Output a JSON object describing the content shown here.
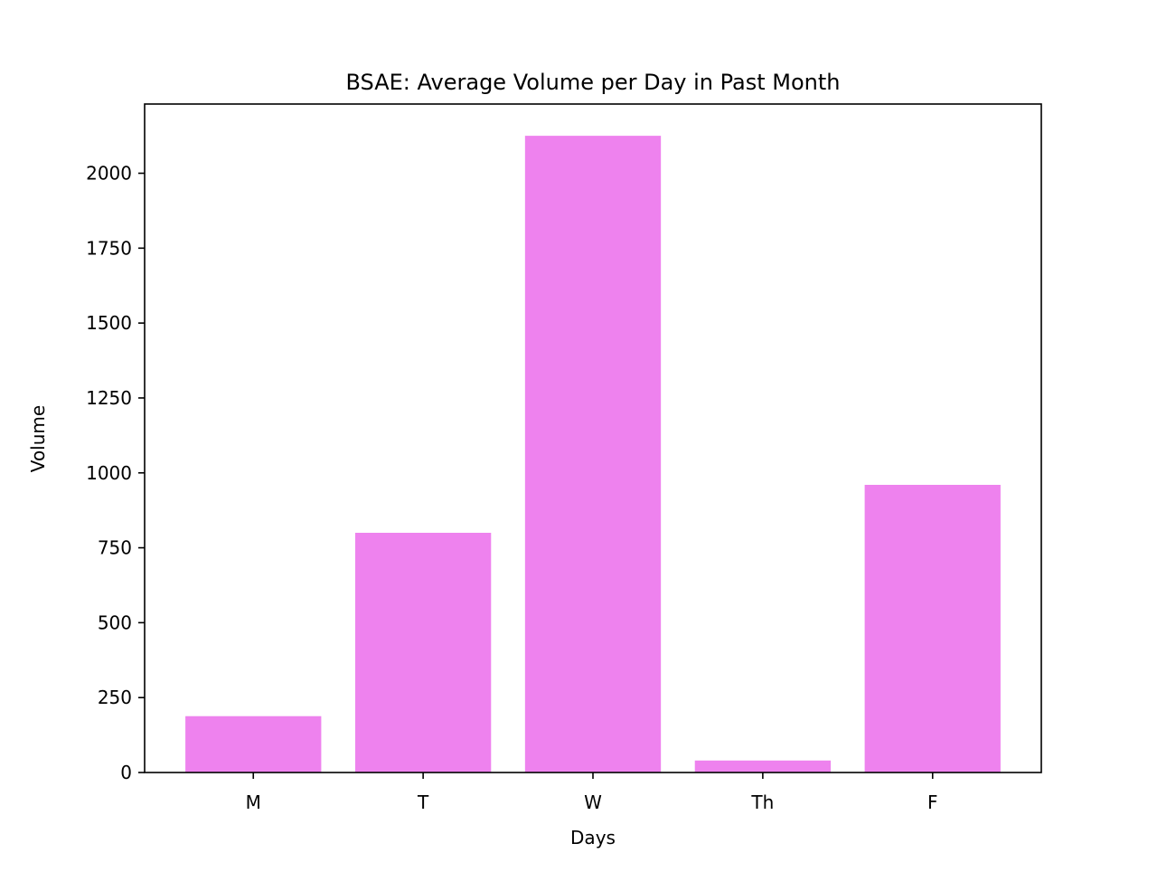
{
  "chart_data": {
    "type": "bar",
    "title": "BSAE: Average Volume per Day in Past Month",
    "xlabel": "Days",
    "ylabel": "Volume",
    "categories": [
      "M",
      "T",
      "W",
      "Th",
      "F"
    ],
    "values": [
      188,
      800,
      2125,
      40,
      960
    ],
    "ylim": [
      0,
      2231
    ],
    "yticks": [
      0,
      250,
      500,
      750,
      1000,
      1250,
      1500,
      1750,
      2000
    ],
    "grid": false,
    "legend": "none",
    "colors": {
      "bar": "#ee82ee",
      "axes": "#000000",
      "background": "#ffffff"
    }
  }
}
